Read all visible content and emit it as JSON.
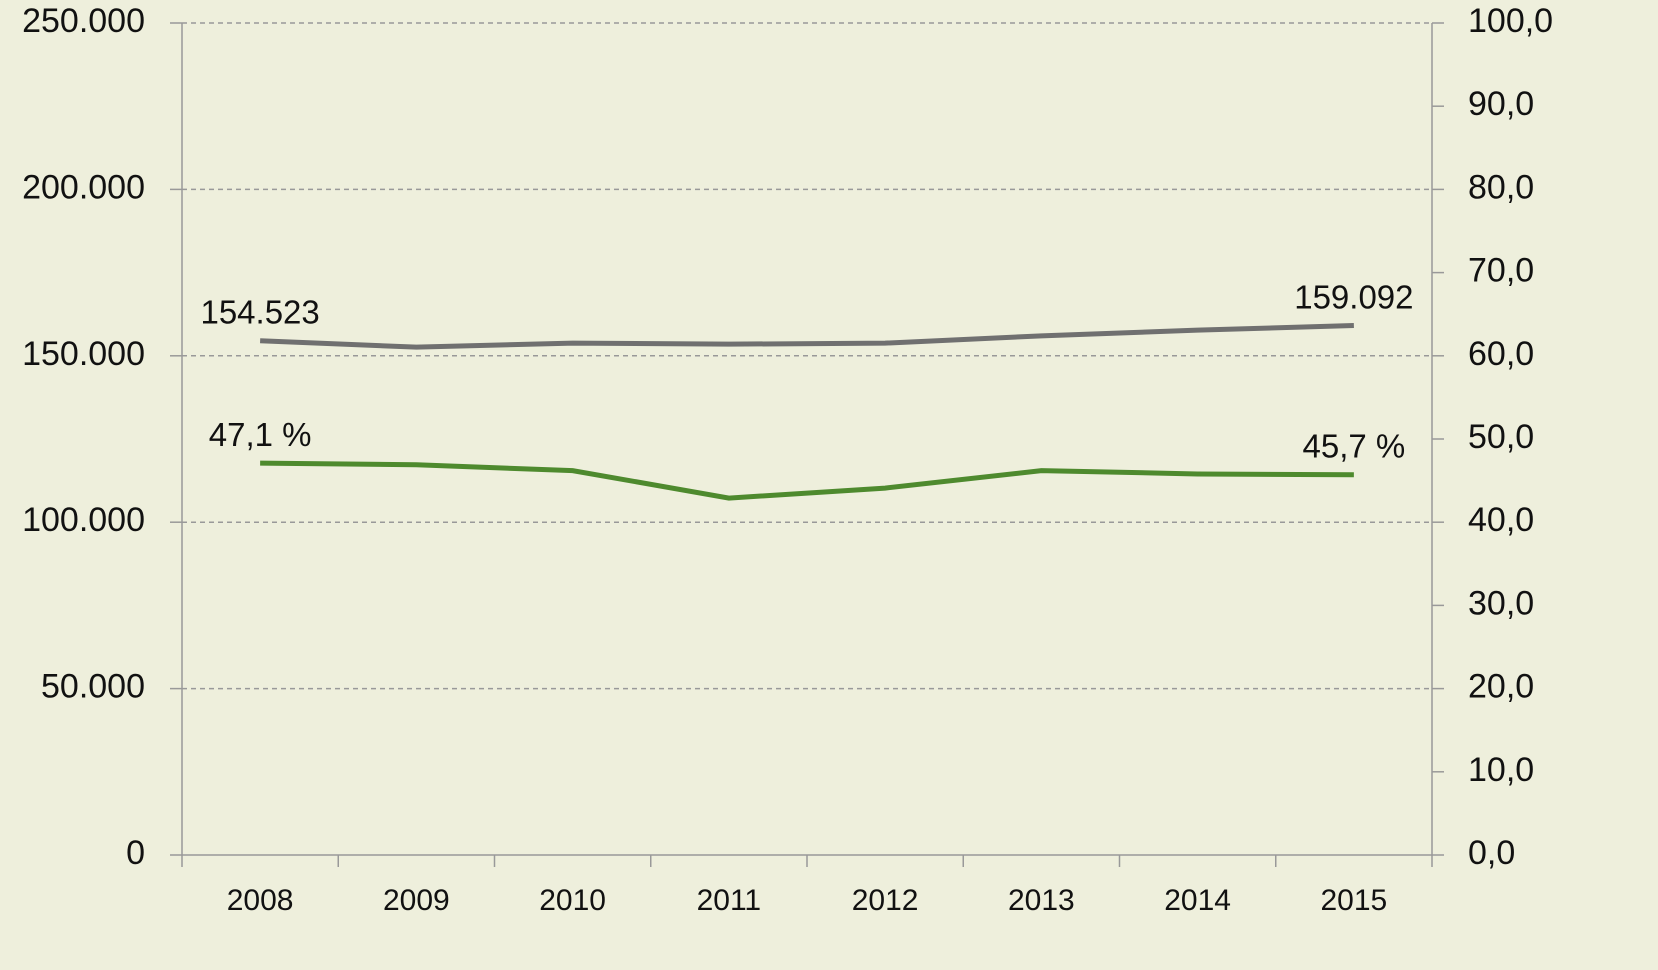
{
  "chart_data": {
    "type": "line",
    "categories": [
      "2008",
      "2009",
      "2010",
      "2011",
      "2012",
      "2013",
      "2014",
      "2015"
    ],
    "series": [
      {
        "color": "#707070",
        "values": [
          154523,
          152600,
          153800,
          153500,
          153800,
          156000,
          157700,
          159092
        ],
        "value_labels": [
          "154.523",
          null,
          null,
          null,
          null,
          null,
          null,
          "159.092"
        ]
      },
      {
        "color": "#4e8a2e",
        "axis": "y2",
        "values": [
          47.1,
          46.9,
          46.2,
          42.9,
          44.1,
          46.2,
          45.8,
          45.7
        ],
        "value_labels": [
          "47,1 %",
          null,
          null,
          null,
          null,
          null,
          null,
          "45,7 %"
        ]
      }
    ],
    "ylim": [
      0,
      250000
    ],
    "yticks": [
      0,
      {
        "value": 50000,
        "label": "50.000"
      },
      {
        "value": 100000,
        "label": "100.000"
      },
      {
        "value": 150000,
        "label": "150.000"
      },
      {
        "value": 200000,
        "label": "200.000"
      },
      {
        "value": 250000,
        "label": "250.000"
      }
    ],
    "y2lim": [
      0,
      100
    ],
    "y2ticks": [
      {
        "value": 0,
        "label": "0,0"
      },
      {
        "value": 10,
        "label": "10,0"
      },
      {
        "value": 20,
        "label": "20,0"
      },
      {
        "value": 30,
        "label": "30,0"
      },
      {
        "value": 40,
        "label": "40,0"
      },
      {
        "value": 50,
        "label": "50,0"
      },
      {
        "value": 60,
        "label": "60,0"
      },
      {
        "value": 70,
        "label": "70,0"
      },
      {
        "value": 80,
        "label": "80,0"
      },
      {
        "value": 90,
        "label": "90,0"
      },
      {
        "value": 100,
        "label": "100,0"
      }
    ],
    "grid": true
  }
}
